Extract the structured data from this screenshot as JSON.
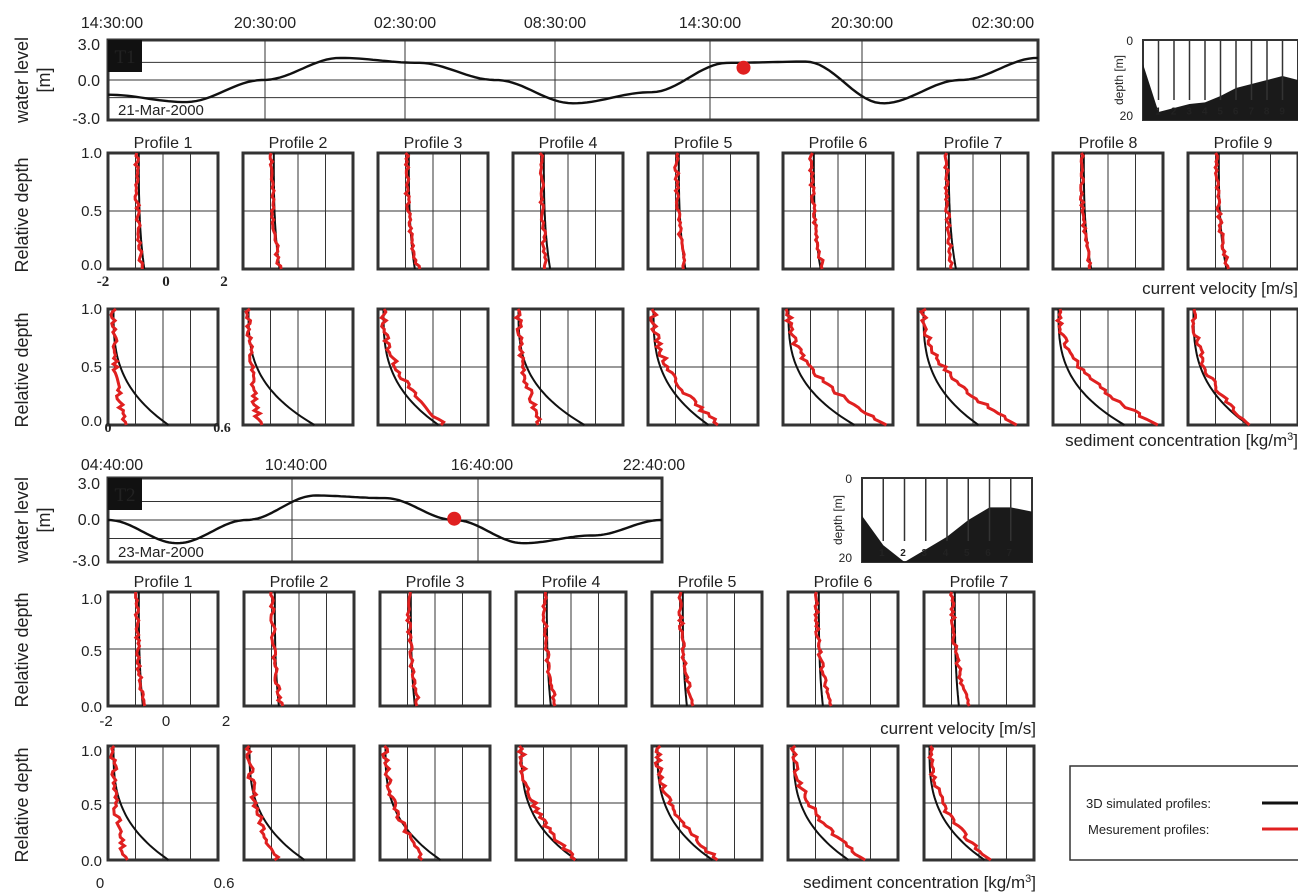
{
  "colors": {
    "sim": "#111111",
    "meas": "#e02020",
    "marker": "#e02020",
    "grid": "#333333",
    "tag_bg": "#111111",
    "tag_fg": "#ffffff",
    "bathy": "#1a1a1a"
  },
  "yaxis_labels": {
    "water_level": "water level",
    "water_level_unit": "[m]",
    "relative_depth": "Relative depth"
  },
  "xaxis_labels": {
    "velocity": "current velocity [m/s]",
    "sediment_prefix": "sediment concentration [kg/m",
    "sediment_sup": "3",
    "sediment_suffix": "]"
  },
  "legend": {
    "simulated": "3D simulated profiles:",
    "measured": "Mesurement profiles:"
  },
  "bathy_labels": {
    "depth": "depth [m]",
    "top": "0",
    "bottom": "20"
  },
  "panels": [
    {
      "id": "T1",
      "tag": "T1",
      "date": "21-Mar-2000",
      "time_ticks": [
        "14:30:00",
        "20:30:00",
        "02:30:00",
        "08:30:00",
        "14:30:00",
        "20:30:00",
        "02:30:00"
      ],
      "wl_ticks": [
        "3.0",
        "0.0",
        "-3.0"
      ],
      "profiles": [
        "Profile 1",
        "Profile 2",
        "Profile 3",
        "Profile 4",
        "Profile 5",
        "Profile 6",
        "Profile 7",
        "Profile 8",
        "Profile 9"
      ],
      "vel_ticks": [
        "-2",
        "0",
        "2"
      ],
      "sed_ticks": [
        "0",
        "0.6"
      ],
      "depth_ticks": [
        "1.0",
        "0.5",
        "0.0"
      ]
    },
    {
      "id": "T2",
      "tag": "T2",
      "date": "23-Mar-2000",
      "time_ticks": [
        "04:40:00",
        "10:40:00",
        "16:40:00",
        "22:40:00"
      ],
      "wl_ticks": [
        "3.0",
        "0.0",
        "-3.0"
      ],
      "profiles": [
        "Profile 1",
        "Profile 2",
        "Profile 3",
        "Profile 4",
        "Profile 5",
        "Profile 6",
        "Profile 7"
      ],
      "vel_ticks": [
        "-2",
        "0",
        "2"
      ],
      "sed_ticks": [
        "0",
        "0.6"
      ],
      "depth_ticks": [
        "1.0",
        "0.5",
        "0.0"
      ]
    }
  ],
  "chart_data": [
    {
      "type": "line",
      "panel": "T1",
      "title": "",
      "ylabel": "water level [m]",
      "ylim": [
        -3,
        3
      ],
      "series": [
        {
          "x": [
            0,
            1,
            2,
            3,
            4,
            5,
            6,
            7,
            8,
            9,
            10,
            11,
            12
          ],
          "values": [
            -1.2,
            -1.8,
            0.0,
            1.8,
            1.4,
            0.0,
            -1.9,
            -1.0,
            1.4,
            1.5,
            -1.9,
            0.0,
            1.8
          ]
        }
      ],
      "marker": {
        "x": 8.2,
        "value": 1.0
      }
    },
    {
      "type": "line",
      "panel": "T1",
      "xlabel": "current velocity [m/s]",
      "ylabel": "Relative depth",
      "xlim": [
        -2,
        2
      ],
      "ylim": [
        0,
        1
      ],
      "series": [
        {
          "name": "3D simulated profiles",
          "values": [
            -0.5,
            -0.7,
            -0.9,
            -0.7,
            -0.5,
            -0.6,
            -0.6,
            -0.6,
            -0.6
          ]
        },
        {
          "name": "Mesurement profiles",
          "values": [
            -1.0,
            -0.8,
            -1.0,
            -0.8,
            -0.6,
            -0.4,
            -0.7,
            -0.8,
            -0.5
          ]
        }
      ]
    },
    {
      "type": "line",
      "panel": "T1",
      "xlabel": "sediment concentration [kg/m3]",
      "ylabel": "Relative depth",
      "xlim": [
        0,
        0.6
      ],
      "ylim": [
        0,
        1
      ],
      "series": [
        {
          "name": "3D simulated profiles",
          "values": [
            0.06,
            0.1,
            0.15,
            0.1,
            0.12,
            0.1,
            0.12,
            0.12,
            0.12
          ]
        },
        {
          "name": "Mesurement profiles",
          "values": [
            0.06,
            0.1,
            0.4,
            0.2,
            0.4,
            0.55,
            0.55,
            0.55,
            0.35
          ]
        }
      ]
    },
    {
      "type": "line",
      "panel": "T2",
      "title": "",
      "ylabel": "water level [m]",
      "ylim": [
        -3,
        3
      ],
      "series": [
        {
          "x": [
            0,
            1,
            2,
            3,
            4,
            5,
            6,
            7,
            8
          ],
          "values": [
            0.0,
            -1.8,
            0.0,
            1.9,
            1.7,
            0.0,
            -1.8,
            -1.2,
            0.0
          ]
        }
      ],
      "marker": {
        "x": 5.0,
        "value": 0.1
      }
    },
    {
      "type": "line",
      "panel": "T2",
      "xlabel": "current velocity [m/s]",
      "ylabel": "Relative depth",
      "xlim": [
        -2,
        2
      ],
      "ylim": [
        0,
        1
      ],
      "series": [
        {
          "name": "3D simulated profiles",
          "values": [
            -0.6,
            -0.5,
            -0.6,
            -0.7,
            -0.8,
            -0.7,
            -0.7
          ]
        },
        {
          "name": "Mesurement profiles",
          "values": [
            -0.6,
            -0.5,
            -0.6,
            -0.6,
            -0.6,
            -0.5,
            -0.7
          ]
        }
      ]
    },
    {
      "type": "line",
      "panel": "T2",
      "xlabel": "sediment concentration [kg/m3]",
      "ylabel": "Relative depth",
      "xlim": [
        0,
        0.6
      ],
      "ylim": [
        0,
        1
      ],
      "series": [
        {
          "name": "3D simulated profiles",
          "values": [
            0.08,
            0.1,
            0.12,
            0.12,
            0.12,
            0.12,
            0.12
          ]
        },
        {
          "name": "Mesurement profiles",
          "values": [
            0.12,
            0.15,
            0.25,
            0.3,
            0.3,
            0.4,
            0.3
          ]
        }
      ]
    }
  ]
}
